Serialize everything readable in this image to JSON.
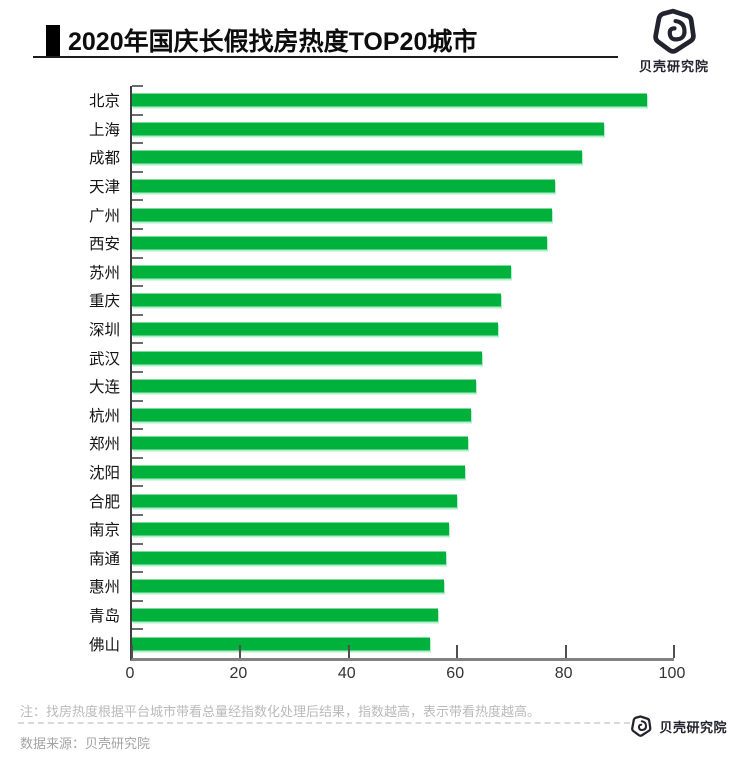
{
  "header": {
    "title": "2020年国庆长假找房热度TOP20城市",
    "brand": "贝壳研究院"
  },
  "chart_data": {
    "type": "bar",
    "orientation": "horizontal",
    "title": "2020年国庆长假找房热度TOP20城市",
    "categories": [
      "北京",
      "上海",
      "成都",
      "天津",
      "广州",
      "西安",
      "苏州",
      "重庆",
      "深圳",
      "武汉",
      "大连",
      "杭州",
      "郑州",
      "沈阳",
      "合肥",
      "南京",
      "南通",
      "惠州",
      "青岛",
      "佛山"
    ],
    "values": [
      95,
      87,
      83,
      78,
      77.5,
      76.5,
      70,
      68,
      67.5,
      64.5,
      63.5,
      62.5,
      62,
      61.5,
      60,
      58.5,
      58,
      57.5,
      56.5,
      55
    ],
    "xlabel": "",
    "ylabel": "",
    "xlim": [
      0,
      100
    ],
    "x_ticks": [
      0,
      20,
      40,
      60,
      80,
      100
    ],
    "grid": false,
    "legend": false,
    "bar_color": "#00b13b"
  },
  "footer": {
    "note": "注：找房热度根据平台城市带看总量经指数化处理后结果，指数越高，表示带看热度越高。",
    "source": "数据来源：贝壳研究院",
    "brand": "贝壳研究院"
  }
}
